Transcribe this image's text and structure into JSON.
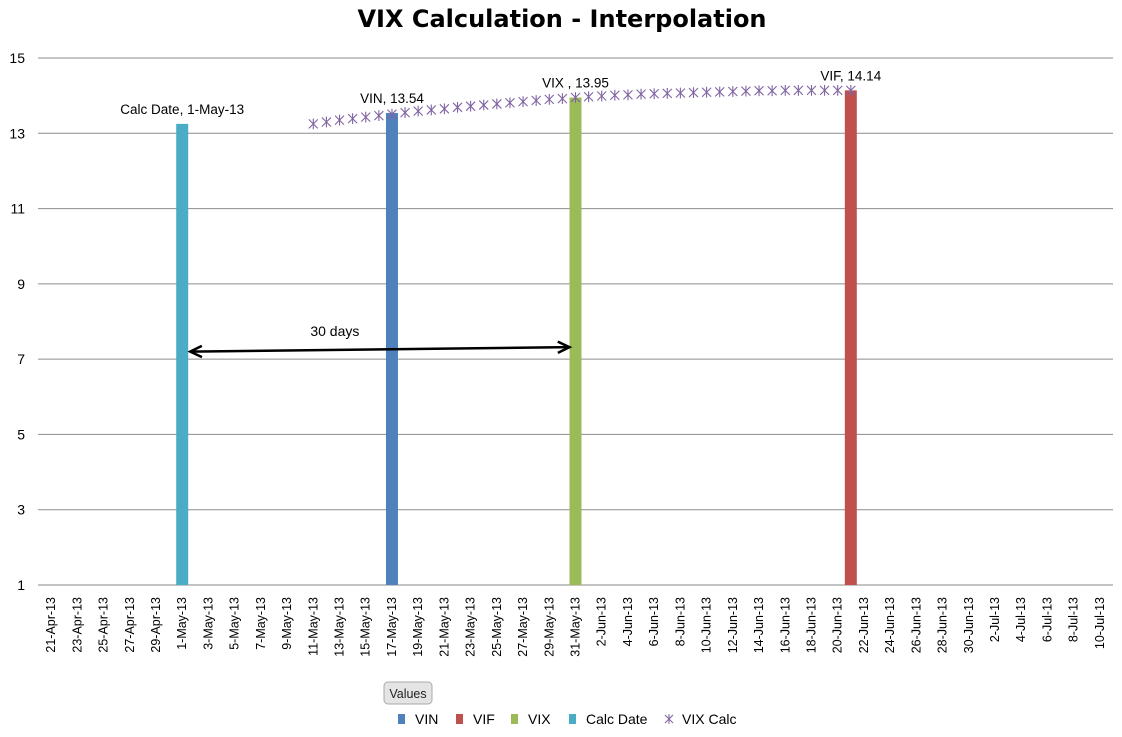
{
  "chart_data": {
    "type": "bar",
    "title": "VIX Calculation - Interpolation",
    "xlabel": "",
    "ylabel": "",
    "ylim": [
      1,
      15
    ],
    "yticks": [
      1,
      3,
      5,
      7,
      9,
      11,
      13,
      15
    ],
    "xrange": [
      "2013-04-20",
      "2013-07-11"
    ],
    "xtick_labels": [
      "21-Apr-13",
      "23-Apr-13",
      "25-Apr-13",
      "27-Apr-13",
      "29-Apr-13",
      "1-May-13",
      "3-May-13",
      "5-May-13",
      "7-May-13",
      "9-May-13",
      "11-May-13",
      "13-May-13",
      "15-May-13",
      "17-May-13",
      "19-May-13",
      "21-May-13",
      "23-May-13",
      "25-May-13",
      "27-May-13",
      "29-May-13",
      "31-May-13",
      "2-Jun-13",
      "4-Jun-13",
      "6-Jun-13",
      "8-Jun-13",
      "10-Jun-13",
      "12-Jun-13",
      "14-Jun-13",
      "16-Jun-13",
      "18-Jun-13",
      "20-Jun-13",
      "22-Jun-13",
      "24-Jun-13",
      "26-Jun-13",
      "28-Jun-13",
      "30-Jun-13",
      "2-Jul-13",
      "4-Jul-13",
      "6-Jul-13",
      "8-Jul-13",
      "10-Jul-13"
    ],
    "grid": true,
    "legend_position": "bottom",
    "legend_title": "Values",
    "series": [
      {
        "name": "VIN",
        "kind": "bar",
        "color": "#4F81BD",
        "points": [
          {
            "x": "2013-05-17",
            "y": 13.54
          }
        ],
        "label": "VIN, 13.54"
      },
      {
        "name": "VIF",
        "kind": "bar",
        "color": "#C0504D",
        "points": [
          {
            "x": "2013-06-21",
            "y": 14.14
          }
        ],
        "label": "VIF, 14.14"
      },
      {
        "name": "VIX",
        "kind": "bar",
        "color": "#9BBB59",
        "points": [
          {
            "x": "2013-05-31",
            "y": 13.95
          }
        ],
        "label": "VIX , 13.95"
      },
      {
        "name": "Calc Date",
        "kind": "bar",
        "color": "#4BACC6",
        "points": [
          {
            "x": "2013-05-01",
            "y": 13.25
          }
        ],
        "label": "Calc Date, 1-May-13"
      },
      {
        "name": "VIX Calc",
        "kind": "scatter",
        "color": "#8064A2",
        "marker": "asterisk",
        "points": [
          {
            "x": "2013-05-11",
            "y": 13.25
          },
          {
            "x": "2013-05-12",
            "y": 13.3
          },
          {
            "x": "2013-05-13",
            "y": 13.35
          },
          {
            "x": "2013-05-14",
            "y": 13.39
          },
          {
            "x": "2013-05-15",
            "y": 13.43
          },
          {
            "x": "2013-05-16",
            "y": 13.47
          },
          {
            "x": "2013-05-17",
            "y": 13.51
          },
          {
            "x": "2013-05-18",
            "y": 13.55
          },
          {
            "x": "2013-05-19",
            "y": 13.59
          },
          {
            "x": "2013-05-20",
            "y": 13.62
          },
          {
            "x": "2013-05-21",
            "y": 13.65
          },
          {
            "x": "2013-05-22",
            "y": 13.69
          },
          {
            "x": "2013-05-23",
            "y": 13.72
          },
          {
            "x": "2013-05-24",
            "y": 13.75
          },
          {
            "x": "2013-05-25",
            "y": 13.78
          },
          {
            "x": "2013-05-26",
            "y": 13.81
          },
          {
            "x": "2013-05-27",
            "y": 13.84
          },
          {
            "x": "2013-05-28",
            "y": 13.87
          },
          {
            "x": "2013-05-29",
            "y": 13.9
          },
          {
            "x": "2013-05-30",
            "y": 13.92
          },
          {
            "x": "2013-05-31",
            "y": 13.95
          },
          {
            "x": "2013-06-01",
            "y": 13.97
          },
          {
            "x": "2013-06-02",
            "y": 13.99
          },
          {
            "x": "2013-06-03",
            "y": 14.01
          },
          {
            "x": "2013-06-04",
            "y": 14.02
          },
          {
            "x": "2013-06-05",
            "y": 14.04
          },
          {
            "x": "2013-06-06",
            "y": 14.05
          },
          {
            "x": "2013-06-07",
            "y": 14.06
          },
          {
            "x": "2013-06-08",
            "y": 14.07
          },
          {
            "x": "2013-06-09",
            "y": 14.08
          },
          {
            "x": "2013-06-10",
            "y": 14.09
          },
          {
            "x": "2013-06-11",
            "y": 14.1
          },
          {
            "x": "2013-06-12",
            "y": 14.11
          },
          {
            "x": "2013-06-13",
            "y": 14.12
          },
          {
            "x": "2013-06-14",
            "y": 14.13
          },
          {
            "x": "2013-06-15",
            "y": 14.13
          },
          {
            "x": "2013-06-16",
            "y": 14.14
          },
          {
            "x": "2013-06-17",
            "y": 14.14
          },
          {
            "x": "2013-06-18",
            "y": 14.14
          },
          {
            "x": "2013-06-19",
            "y": 14.14
          },
          {
            "x": "2013-06-20",
            "y": 14.14
          },
          {
            "x": "2013-06-21",
            "y": 14.14
          }
        ]
      }
    ],
    "annotations": [
      {
        "text": "30 days",
        "from": {
          "x": "2013-05-01",
          "y": 7.2
        },
        "to": {
          "x": "2013-05-31",
          "y": 7.32
        },
        "arrow": "both"
      }
    ]
  }
}
